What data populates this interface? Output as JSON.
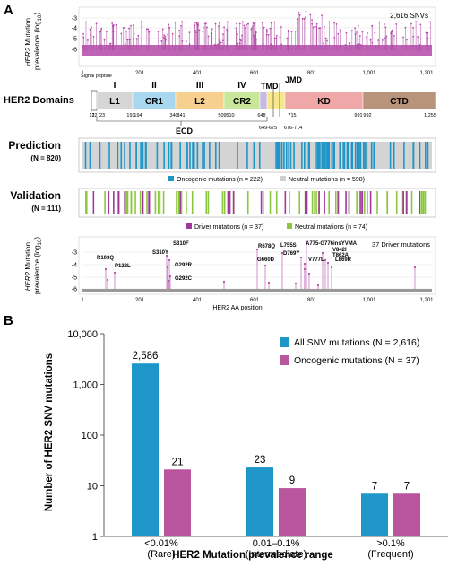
{
  "panel_a": {
    "label": "A",
    "lollipop_top": {
      "ylabel_1": "HER2",
      "ylabel_2": " Mutation",
      "ylabel_3": "prevalence (log",
      "ylabel_sub": "10",
      "ylabel_4": ")",
      "annotation": "2,616 SNVs",
      "yticks": [
        "-3",
        "-4",
        "-5",
        "-6"
      ],
      "xticks": [
        "1",
        "201",
        "401",
        "601",
        "801",
        "1,001",
        "1,201"
      ]
    },
    "domains": {
      "title": "HER2 Domains",
      "signal_label": "Signal peptide",
      "segments": [
        {
          "name": "L1",
          "color": "#d6d6d6"
        },
        {
          "name": "CR1",
          "color": "#a8d8ef"
        },
        {
          "name": "L2",
          "color": "#f7cf8e"
        },
        {
          "name": "CR2",
          "color": "#c9e79a"
        },
        {
          "name": "",
          "color": "#c9b8e0"
        },
        {
          "name": "",
          "color": "#f7e88c"
        },
        {
          "name": "KD",
          "color": "#f0a7a7"
        },
        {
          "name": "CTD",
          "color": "#b8957a"
        }
      ],
      "roman": [
        "I",
        "II",
        "III",
        "IV"
      ],
      "tmd": "TMD",
      "jmd": "JMD",
      "ecd": "ECD",
      "positions": [
        "1",
        "23",
        "122",
        "193",
        "194",
        "340",
        "341",
        "509",
        "510",
        "648",
        "715",
        "991",
        "992",
        "1,255"
      ],
      "tmd_range": "649-675",
      "jmd_range": "676-714"
    },
    "prediction": {
      "title": "Prediction",
      "n_label": "(N = 820)",
      "legend": [
        {
          "text": "Oncogenic mutations (n = 222)",
          "color": "#1f96c8"
        },
        {
          "text": "Neutral mutations (n = 598)",
          "color": "#cfcfcf"
        }
      ]
    },
    "validation": {
      "title": "Validation",
      "n_label": "(N = 111)",
      "legend": [
        {
          "text": "Driver mutations (n = 37)",
          "color": "#a0399b"
        },
        {
          "text": "Neutral mutations (n = 74)",
          "color": "#8cc63f"
        }
      ]
    },
    "lollipop_bottom": {
      "ylabel_1": "HER2",
      "ylabel_2": " Mutation",
      "ylabel_3": "prevalence (log",
      "ylabel_sub": "10",
      "ylabel_4": ")",
      "annotation": "37 Driver mutations",
      "xlabel": "HER2 AA position",
      "yticks": [
        "-3",
        "-4",
        "-5",
        "-6"
      ],
      "xticks": [
        "1",
        "201",
        "401",
        "601",
        "801",
        "1,001",
        "1,201"
      ],
      "labels": [
        "R103Q",
        "P122L",
        "S310Y",
        "S310F",
        "G292R",
        "G292C",
        "R678Q",
        "G660D",
        "L755S",
        "D769Y",
        "V777L",
        "A775-G776insYVMA",
        "V842I",
        "T862A",
        "L869R"
      ]
    }
  },
  "chart_data": {
    "type": "bar",
    "panel_label": "B",
    "categories": [
      "<0.01%\n(Rare)",
      "0.01–0.1%\n(Intermediate)",
      ">0.1%\n(Frequent)"
    ],
    "category_lines": [
      [
        "<0.01%",
        "(Rare)"
      ],
      [
        "0.01–0.1%",
        "(Intermediate)"
      ],
      [
        ">0.1%",
        "(Frequent)"
      ]
    ],
    "series": [
      {
        "name": "All SNV mutations (N = 2,616)",
        "values": [
          2586,
          23,
          7
        ],
        "labels": [
          "2,586",
          "23",
          "7"
        ],
        "color": "#1f96c8"
      },
      {
        "name": "Oncogenic mutations (N = 37)",
        "values": [
          21,
          9,
          7
        ],
        "labels": [
          "21",
          "9",
          "7"
        ],
        "color": "#b8559c"
      }
    ],
    "ylabel": "Number of HER2 SNV mutations",
    "xlabel": "HER2 Mutation prevalence range",
    "yscale": "log",
    "ylim": [
      1,
      10000
    ],
    "yticks": [
      1,
      10,
      100,
      1000,
      10000
    ],
    "ytick_labels": [
      "1",
      "10",
      "100",
      "1,000",
      "10,000"
    ],
    "legend_position": "top-right",
    "grid": false
  }
}
